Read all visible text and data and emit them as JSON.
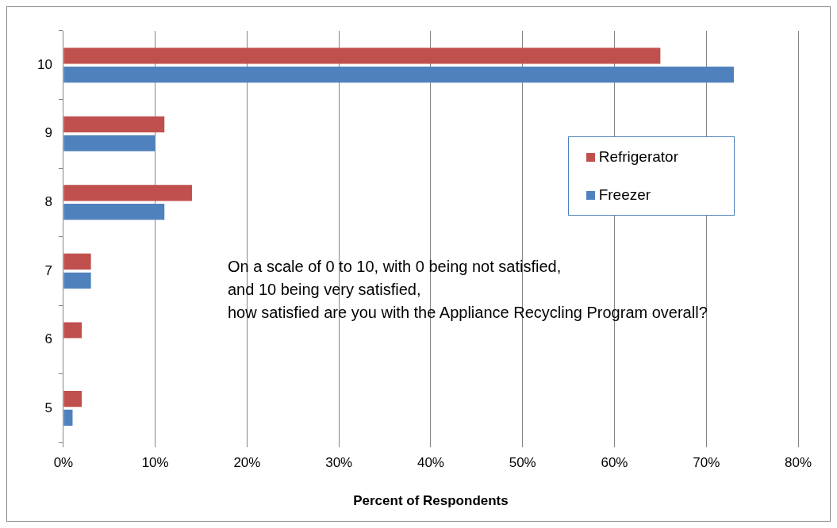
{
  "chart_data": {
    "type": "bar",
    "orientation": "horizontal",
    "xlabel": "Percent of Respondents",
    "categories": [
      "10",
      "9",
      "8",
      "7",
      "6",
      "5"
    ],
    "series": [
      {
        "name": "Refrigerator",
        "color": "#c0504d",
        "values": [
          65,
          11,
          14,
          3,
          2,
          2
        ]
      },
      {
        "name": "Freezer",
        "color": "#4f81bd",
        "values": [
          73,
          10,
          11,
          3,
          0,
          1
        ]
      }
    ],
    "xlim": [
      0,
      80
    ],
    "xticks": [
      {
        "value": 0,
        "label": "0%"
      },
      {
        "value": 10,
        "label": "10%"
      },
      {
        "value": 20,
        "label": "20%"
      },
      {
        "value": 30,
        "label": "30%"
      },
      {
        "value": 40,
        "label": "40%"
      },
      {
        "value": 50,
        "label": "50%"
      },
      {
        "value": 60,
        "label": "60%"
      },
      {
        "value": 70,
        "label": "70%"
      },
      {
        "value": 80,
        "label": "80%"
      }
    ],
    "grid": "x",
    "legend": "top right",
    "annotations": [
      "On a scale of 0 to 10, with 0 being not satisfied,\nand 10 being very satisfied,\nhow satisfied are you with the Appliance Recycling Program overall?"
    ]
  }
}
